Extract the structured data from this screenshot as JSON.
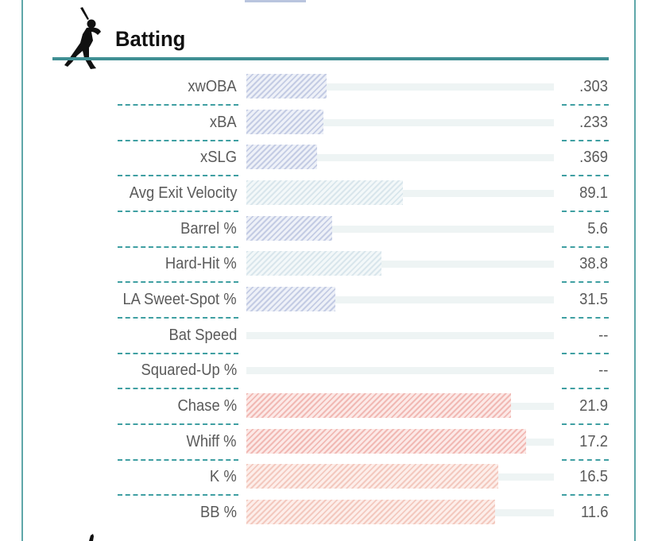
{
  "section": {
    "title": "Batting",
    "icon": "batter-silhouette-icon"
  },
  "colors": {
    "frame": "#5ea7a9",
    "rule": "#3f8f93",
    "dash": "#3f9fa2",
    "track": "#eef4f4",
    "blue": "#c4cce4",
    "teal": "#d9e6ec",
    "red": "#f1b9b4",
    "salmon": "#f3c9bf"
  },
  "stats": [
    {
      "label": "xwOBA",
      "value": ".303",
      "fill_pct": 26,
      "tone": "blue"
    },
    {
      "label": "xBA",
      "value": ".233",
      "fill_pct": 25,
      "tone": "blue"
    },
    {
      "label": "xSLG",
      "value": ".369",
      "fill_pct": 23,
      "tone": "blue"
    },
    {
      "label": "Avg Exit Velocity",
      "value": "89.1",
      "fill_pct": 51,
      "tone": "teal"
    },
    {
      "label": "Barrel %",
      "value": "5.6",
      "fill_pct": 28,
      "tone": "blue"
    },
    {
      "label": "Hard-Hit %",
      "value": "38.8",
      "fill_pct": 44,
      "tone": "teal"
    },
    {
      "label": "LA Sweet-Spot %",
      "value": "31.5",
      "fill_pct": 29,
      "tone": "blue"
    },
    {
      "label": "Bat Speed",
      "value": "--",
      "fill_pct": 0,
      "tone": "blue"
    },
    {
      "label": "Squared-Up %",
      "value": "--",
      "fill_pct": 0,
      "tone": "blue"
    },
    {
      "label": "Chase %",
      "value": "21.9",
      "fill_pct": 86,
      "tone": "red"
    },
    {
      "label": "Whiff %",
      "value": "17.2",
      "fill_pct": 91,
      "tone": "red"
    },
    {
      "label": "K %",
      "value": "16.5",
      "fill_pct": 82,
      "tone": "salmon"
    },
    {
      "label": "BB %",
      "value": "11.6",
      "fill_pct": 81,
      "tone": "salmon"
    }
  ]
}
